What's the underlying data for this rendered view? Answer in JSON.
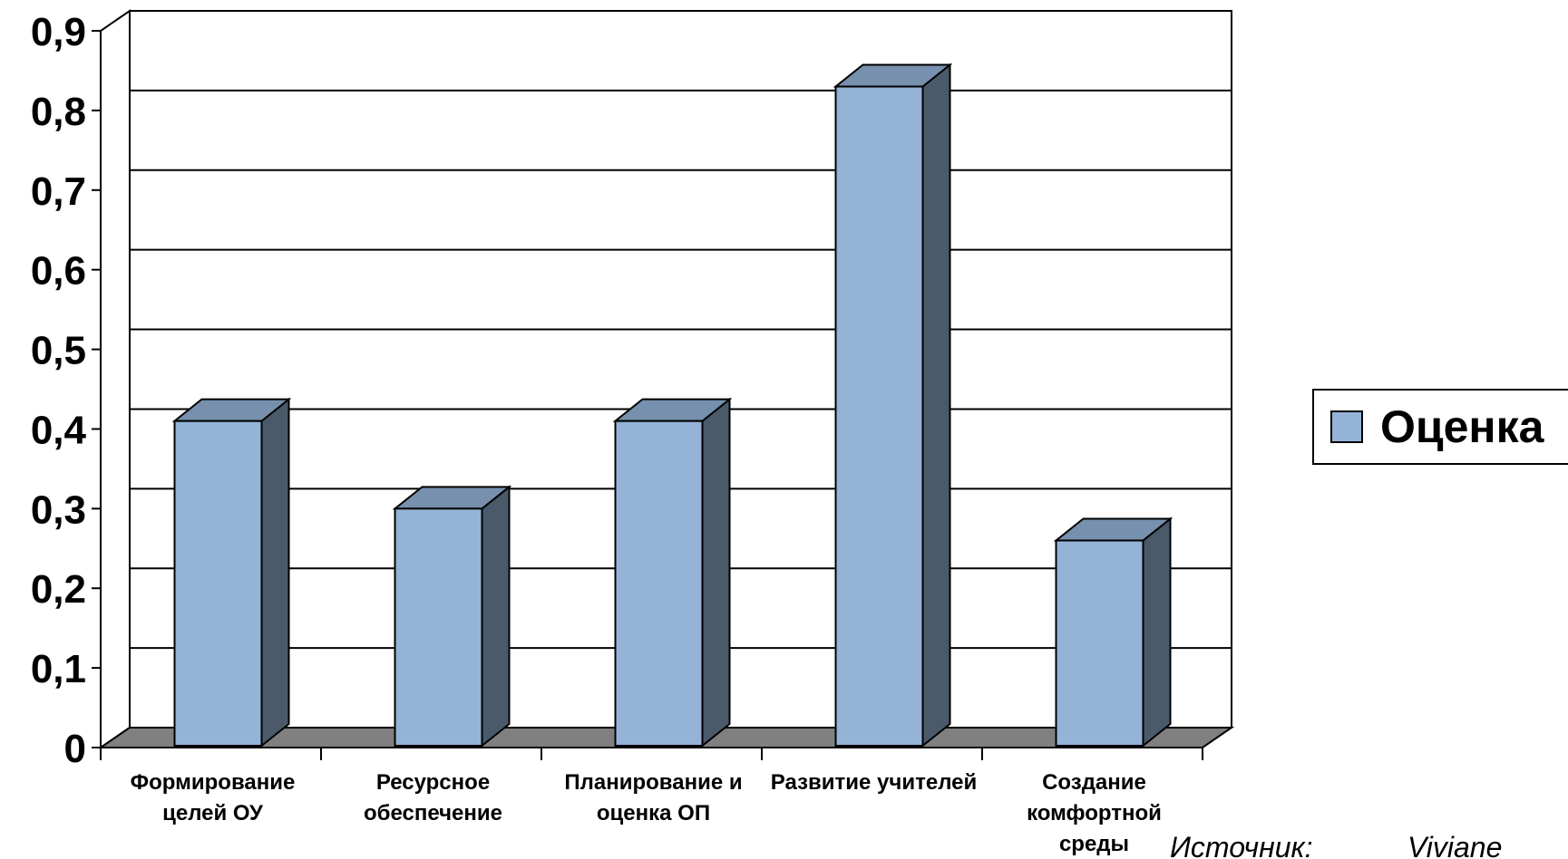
{
  "chart_data": {
    "type": "bar",
    "style": "3d-column",
    "categories": [
      [
        "Формирование",
        "целей ОУ"
      ],
      [
        "Ресурсное",
        "обеспечение"
      ],
      [
        "Планирование и",
        "оценка ОП"
      ],
      [
        "Развитие учителей"
      ],
      [
        "Создание",
        "комфортной",
        "среды"
      ]
    ],
    "series": [
      {
        "name": "Оценка",
        "values": [
          0.41,
          0.3,
          0.41,
          0.83,
          0.26
        ]
      }
    ],
    "y_ticks": [
      "0",
      "0,1",
      "0,2",
      "0,3",
      "0,4",
      "0,5",
      "0,6",
      "0,7",
      "0,8",
      "0,9"
    ],
    "ylim": [
      0,
      0.9
    ],
    "grid": true,
    "legend_position": "right",
    "colors": {
      "bar_front": "#95b3d7",
      "bar_top": "#7690ad",
      "bar_side": "#4a5a6a",
      "floor": "#808080",
      "grid": "#000000"
    }
  },
  "footer": {
    "source_label": "Источник:",
    "source_author": "Viviane"
  }
}
